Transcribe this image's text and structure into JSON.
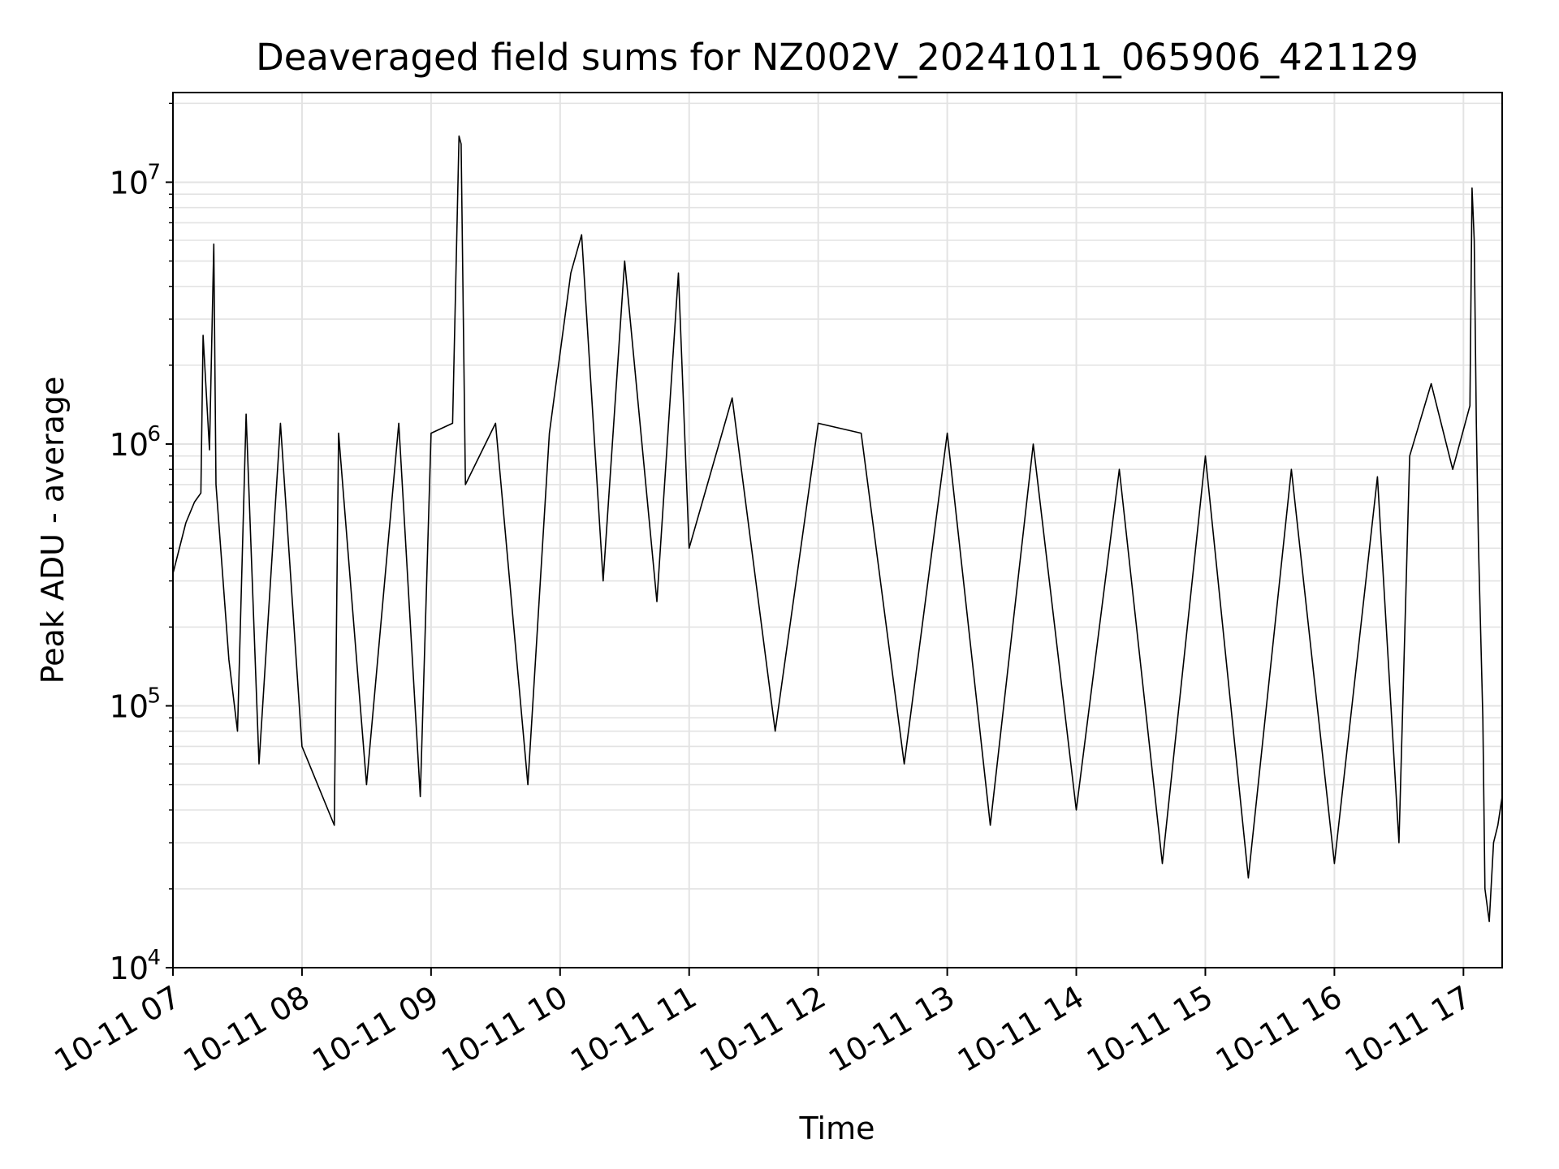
{
  "chart_data": {
    "type": "line",
    "title": "Deaveraged field sums for NZ002V_20241011_065906_421129",
    "xlabel": "Time",
    "ylabel": "Peak ADU - average",
    "yscale": "log",
    "ylim": [
      10000,
      22000000
    ],
    "xlim": [
      "2024-10-11 07:00",
      "2024-10-11 17:18"
    ],
    "x_tick_labels": [
      "10-11 07",
      "10-11 08",
      "10-11 09",
      "10-11 10",
      "10-11 11",
      "10-11 12",
      "10-11 13",
      "10-11 14",
      "10-11 15",
      "10-11 16",
      "10-11 17"
    ],
    "y_tick_labels": [
      {
        "base": "10",
        "exp": "4"
      },
      {
        "base": "10",
        "exp": "5"
      },
      {
        "base": "10",
        "exp": "6"
      },
      {
        "base": "10",
        "exp": "7"
      }
    ],
    "grid": true,
    "line_color": "#000000",
    "series": [
      {
        "x": [
          "2024-10-11 07:00",
          "2024-10-11 07:06",
          "2024-10-11 07:10",
          "2024-10-11 07:13",
          "2024-10-11 07:14",
          "2024-10-11 07:17",
          "2024-10-11 07:19",
          "2024-10-11 07:20",
          "2024-10-11 07:26",
          "2024-10-11 07:30",
          "2024-10-11 07:34",
          "2024-10-11 07:40",
          "2024-10-11 07:50",
          "2024-10-11 08:00",
          "2024-10-11 08:15",
          "2024-10-11 08:17",
          "2024-10-11 08:30",
          "2024-10-11 08:45",
          "2024-10-11 08:55",
          "2024-10-11 09:00",
          "2024-10-11 09:10",
          "2024-10-11 09:13",
          "2024-10-11 09:14",
          "2024-10-11 09:16",
          "2024-10-11 09:30",
          "2024-10-11 09:45",
          "2024-10-11 09:55",
          "2024-10-11 10:05",
          "2024-10-11 10:10",
          "2024-10-11 10:20",
          "2024-10-11 10:30",
          "2024-10-11 10:45",
          "2024-10-11 10:55",
          "2024-10-11 11:00",
          "2024-10-11 11:20",
          "2024-10-11 11:40",
          "2024-10-11 12:00",
          "2024-10-11 12:20",
          "2024-10-11 12:40",
          "2024-10-11 13:00",
          "2024-10-11 13:20",
          "2024-10-11 13:40",
          "2024-10-11 14:00",
          "2024-10-11 14:20",
          "2024-10-11 14:40",
          "2024-10-11 15:00",
          "2024-10-11 15:20",
          "2024-10-11 15:40",
          "2024-10-11 16:00",
          "2024-10-11 16:20",
          "2024-10-11 16:30",
          "2024-10-11 16:35",
          "2024-10-11 16:45",
          "2024-10-11 16:55",
          "2024-10-11 17:03",
          "2024-10-11 17:04",
          "2024-10-11 17:05",
          "2024-10-11 17:06",
          "2024-10-11 17:07",
          "2024-10-11 17:09",
          "2024-10-11 17:10",
          "2024-10-11 17:12",
          "2024-10-11 17:14",
          "2024-10-11 17:16",
          "2024-10-11 17:18"
        ],
        "y": [
          320000,
          500000,
          600000,
          650000,
          2600000,
          950000,
          5800000,
          700000,
          150000,
          80000,
          1300000,
          60000,
          1200000,
          70000,
          35000,
          1100000,
          50000,
          1200000,
          45000,
          1100000,
          1200000,
          15000000,
          14000000,
          700000,
          1200000,
          50000,
          1100000,
          4500000,
          6300000,
          300000,
          5000000,
          250000,
          4500000,
          400000,
          1500000,
          80000,
          1200000,
          1100000,
          60000,
          1100000,
          35000,
          1000000,
          40000,
          800000,
          25000,
          900000,
          22000,
          800000,
          25000,
          750000,
          30000,
          900000,
          1700000,
          800000,
          1400000,
          9500000,
          6000000,
          1200000,
          400000,
          90000,
          20000,
          15000,
          30000,
          35000,
          45000
        ]
      }
    ]
  }
}
